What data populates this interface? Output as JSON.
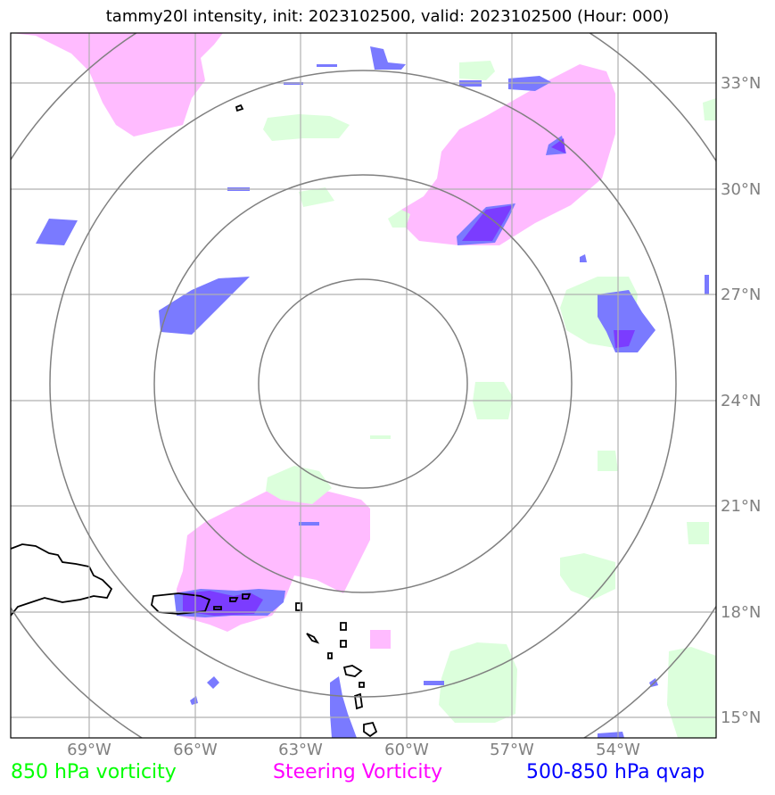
{
  "title": "tammy20l intensity, init: 2023102500, valid: 2023102500 (Hour: 000)",
  "lat_labels": [
    "33°N",
    "30°N",
    "27°N",
    "24°N",
    "21°N",
    "18°N",
    "15°N"
  ],
  "lon_labels": [
    "69°W",
    "66°W",
    "63°W",
    "60°W",
    "57°W",
    "54°W"
  ],
  "legend": {
    "vorticity_850": {
      "label": "850 hPa vorticity",
      "color": "#00ff00"
    },
    "steering_vorticity": {
      "label": "Steering Vorticity",
      "color": "#ff00ff"
    },
    "qvap": {
      "label": "500-850 hPa qvap",
      "color": "#0000ff"
    }
  },
  "range_rings": {
    "count": 4
  },
  "colors": {
    "steering_fill": "#ffbbff",
    "vort_fill": "#dcffdc",
    "qvap_fill": "#7a7aff",
    "overlap_fill": "#7b3cff",
    "grid": "#b0b0b0",
    "ring": "#808080",
    "coast": "#000000"
  }
}
